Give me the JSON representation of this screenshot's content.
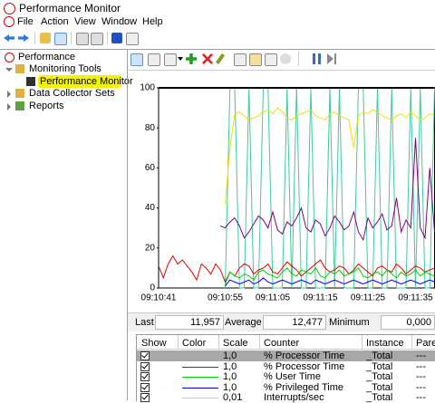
{
  "window": {
    "title": "Performance Monitor"
  },
  "menu": [
    "File",
    "Action",
    "View",
    "Window",
    "Help"
  ],
  "tree": [
    {
      "label": "Performance",
      "level": 0
    },
    {
      "label": "Monitoring Tools",
      "level": 1
    },
    {
      "label": "Performance Monitor",
      "level": 2,
      "selected": true
    },
    {
      "label": "Data Collector Sets",
      "level": 1
    },
    {
      "label": "Reports",
      "level": 1
    }
  ],
  "stats": [
    {
      "label": "Last",
      "value": "11,957"
    },
    {
      "label": "Average",
      "value": "12,477"
    },
    {
      "label": "Minimum",
      "value": "0,000"
    }
  ],
  "counters": {
    "columns": [
      "Show",
      "Color",
      "Scale",
      "Counter",
      "Instance",
      "Paren"
    ],
    "rows": [
      {
        "scale": "1,0",
        "counter": "% Processor Time",
        "instance": "_Total",
        "parent": "---",
        "selected": true
      },
      {
        "color": "#e00000",
        "scale": "1,0",
        "counter": "% Processor Time",
        "instance": "_Total",
        "parent": "---"
      },
      {
        "color": "#00d000",
        "scale": "1,0",
        "counter": "% User Time",
        "instance": "_Total",
        "parent": "---"
      },
      {
        "color": "#0000ff",
        "scale": "1,0",
        "counter": "% Privileged Time",
        "instance": "_Total",
        "parent": "---"
      },
      {
        "color": "#f0e000",
        "scale": "0,01",
        "counter": "Interrupts/sec",
        "instance": "_Total",
        "parent": "---"
      }
    ]
  },
  "chart_data": {
    "type": "line",
    "categories": [
      "09:10:41",
      null,
      null,
      null,
      null,
      null,
      null,
      null,
      null,
      null,
      null,
      null,
      null,
      null,
      "09:10:55",
      null,
      null,
      null,
      null,
      null,
      null,
      null,
      null,
      null,
      "09:11:05",
      null,
      null,
      null,
      null,
      null,
      null,
      null,
      null,
      null,
      "09:11:15",
      null,
      null,
      null,
      null,
      null,
      null,
      null,
      null,
      null,
      "09:11:25",
      null,
      null,
      null,
      null,
      null,
      null,
      null,
      null,
      null,
      "09:11:35",
      null,
      null,
      null,
      null
    ],
    "ylim": [
      0,
      100
    ],
    "yticks": [
      0,
      20,
      40,
      60,
      80,
      100
    ],
    "grid": false,
    "series": [
      {
        "color": "#40c8a0",
        "values": [
          null,
          null,
          null,
          null,
          null,
          null,
          null,
          null,
          null,
          null,
          null,
          null,
          null,
          null,
          0,
          100,
          100,
          0,
          0,
          100,
          0,
          0,
          100,
          100,
          0,
          0,
          0,
          100,
          0,
          100,
          0,
          0,
          100,
          0,
          0,
          0,
          100,
          0,
          100,
          0,
          0,
          0,
          100,
          100,
          0,
          0,
          100,
          0,
          0,
          100,
          0,
          0,
          0,
          100,
          0,
          100,
          0,
          0,
          100
        ]
      },
      {
        "color": "#800080",
        "values": [
          null,
          null,
          null,
          null,
          null,
          null,
          null,
          null,
          null,
          null,
          null,
          null,
          null,
          31,
          30,
          33,
          35,
          31,
          25,
          28,
          32,
          36,
          34,
          30,
          38,
          29,
          27,
          33,
          31,
          35,
          40,
          30,
          28,
          34,
          32,
          26,
          30,
          36,
          33,
          29,
          31,
          38,
          28,
          24,
          35,
          30,
          33,
          37,
          29,
          31,
          45,
          28,
          34,
          30,
          75,
          30,
          25,
          60,
          28
        ]
      },
      {
        "color": "#f0e000",
        "values": [
          null,
          null,
          null,
          null,
          null,
          null,
          null,
          null,
          null,
          null,
          null,
          null,
          null,
          null,
          42,
          70,
          87,
          88,
          86,
          84,
          85,
          86,
          88,
          89,
          87,
          90,
          88,
          85,
          84,
          86,
          87,
          88,
          89,
          86,
          85,
          84,
          87,
          88,
          86,
          85,
          84,
          70,
          86,
          88,
          87,
          89,
          88,
          86,
          85,
          84,
          86,
          87,
          85,
          88,
          86,
          84,
          85,
          87,
          86
        ]
      },
      {
        "color": "#e00000",
        "values": [
          11,
          5,
          12,
          16,
          12,
          14,
          11,
          8,
          4,
          12,
          10,
          7,
          12,
          9,
          3,
          8,
          6,
          10,
          12,
          11,
          7,
          9,
          10,
          12,
          8,
          7,
          10,
          13,
          11,
          9,
          6,
          8,
          10,
          12,
          14,
          10,
          8,
          9,
          11,
          10,
          7,
          9,
          12,
          10,
          8,
          6,
          10,
          11,
          9,
          8,
          12,
          10,
          7,
          9,
          11,
          10,
          8,
          9,
          10
        ]
      },
      {
        "color": "#00d000",
        "values": [
          null,
          null,
          null,
          null,
          null,
          null,
          null,
          null,
          null,
          null,
          null,
          null,
          null,
          null,
          2,
          8,
          6,
          5,
          7,
          6,
          4,
          8,
          9,
          7,
          6,
          5,
          8,
          10,
          7,
          6,
          9,
          8,
          7,
          10,
          6,
          5,
          8,
          7,
          9,
          6,
          7,
          8,
          10,
          6,
          5,
          7,
          8,
          6,
          9,
          7,
          5,
          8,
          6,
          7,
          9,
          6,
          8,
          7,
          6
        ]
      },
      {
        "color": "#0000ff",
        "values": [
          null,
          null,
          null,
          null,
          null,
          null,
          null,
          null,
          null,
          null,
          null,
          null,
          null,
          null,
          1,
          4,
          3,
          2,
          3,
          4,
          2,
          3,
          5,
          3,
          2,
          3,
          4,
          3,
          2,
          3,
          4,
          3,
          2,
          4,
          3,
          2,
          3,
          4,
          3,
          2,
          3,
          4,
          3,
          2,
          3,
          4,
          3,
          2,
          3,
          4,
          3,
          2,
          3,
          4,
          3,
          2,
          3,
          4,
          3
        ]
      }
    ]
  }
}
